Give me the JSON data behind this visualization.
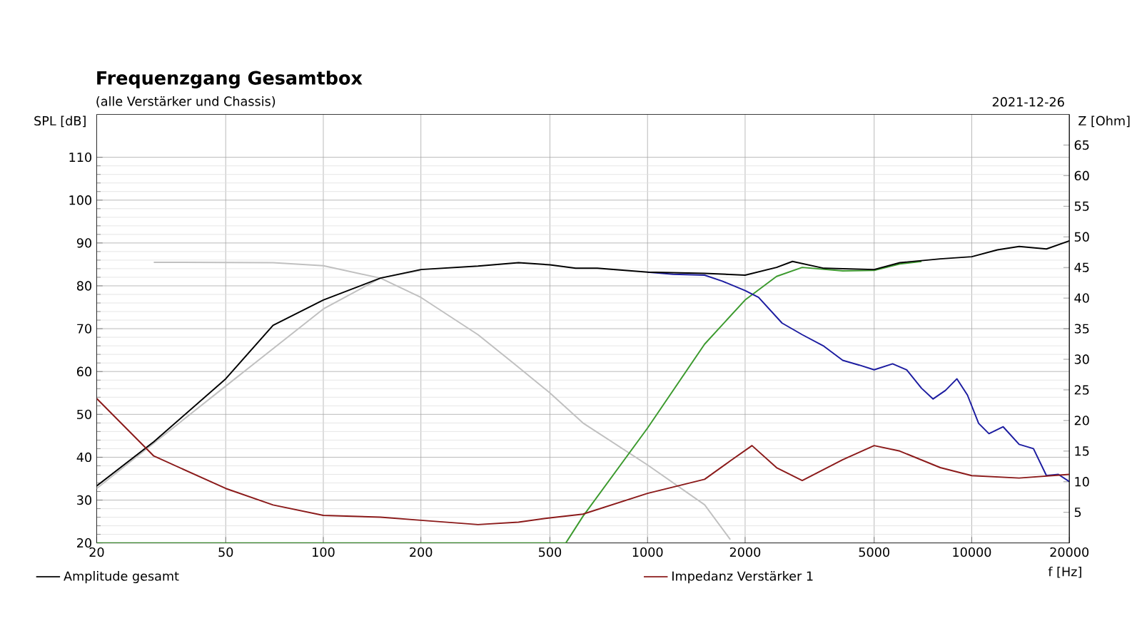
{
  "chart_data": {
    "type": "line",
    "title": "Frequenzgang Gesamtbox",
    "subtitle": "(alle Verstärker und Chassis)",
    "annotations": [
      "2021-12-26"
    ],
    "xlabel": "f [Hz]",
    "ylabel": "SPL [dB]",
    "y2label": "Z [Ohm]",
    "log": "x",
    "grid": true,
    "legend": "bottom",
    "xlim": [
      20,
      20000
    ],
    "xticks": [
      20,
      50,
      100,
      200,
      500,
      1000,
      2000,
      5000,
      10000,
      20000
    ],
    "ylim": [
      20,
      120
    ],
    "yticks": [
      20,
      30,
      40,
      50,
      60,
      70,
      80,
      90,
      100,
      110
    ],
    "y2lim": [
      0,
      70
    ],
    "y2ticks": [
      5,
      10,
      15,
      20,
      25,
      30,
      35,
      40,
      45,
      50,
      55,
      60,
      65
    ],
    "series": [
      {
        "color": "#c0c0c0",
        "x": [
          20,
          50,
          100,
          150,
          200
        ],
        "values": [
          32.7,
          56.6,
          74.6,
          81.8,
          83.6
        ]
      },
      {
        "color": "#c0c0c0",
        "x": [
          30,
          70,
          100,
          150,
          200,
          300,
          400,
          500,
          632,
          1000,
          1500,
          1800
        ],
        "values": [
          85.5,
          85.4,
          84.7,
          81.8,
          77.3,
          68.6,
          61,
          55,
          48,
          38.2,
          28.9,
          20.8
        ]
      },
      {
        "color": "#3c9a2e",
        "x": [
          20,
          560,
          632,
          1000,
          1500,
          2000,
          2500,
          3000,
          4000,
          5000,
          6000,
          7000
        ],
        "values": [
          20,
          20,
          26.2,
          46.8,
          66.4,
          76.7,
          82.2,
          84.3,
          83.5,
          83.6,
          85.1,
          85.7
        ]
      },
      {
        "color": "#1c1ca0",
        "x": [
          1000,
          1200,
          1500,
          1700,
          2000,
          2200,
          2600,
          3000,
          3500,
          4000,
          4500,
          5000,
          5700,
          6300,
          7000,
          7600,
          8300,
          9000,
          9700,
          10500,
          11300,
          12500,
          14000,
          15500,
          17000,
          18500,
          20000
        ],
        "values": [
          83.2,
          82.7,
          82.5,
          81.1,
          78.9,
          77.3,
          71.3,
          68.6,
          65.9,
          62.6,
          61.5,
          60.4,
          61.8,
          60.4,
          56.1,
          53.6,
          55.6,
          58.3,
          54.5,
          47.9,
          45.5,
          47.1,
          43,
          42,
          35.7,
          36,
          34.3
        ]
      },
      {
        "name": "Amplitude gesamt",
        "color": "#000000",
        "x": [
          20,
          30,
          50,
          70,
          100,
          150,
          200,
          300,
          400,
          500,
          600,
          700,
          1000,
          1500,
          2000,
          2500,
          2800,
          3500,
          5000,
          6000,
          8000,
          10000,
          12000,
          14000,
          17000,
          20000
        ],
        "values": [
          33.3,
          43.6,
          58.3,
          70.8,
          76.7,
          81.8,
          83.8,
          84.6,
          85.4,
          84.9,
          84.1,
          84.1,
          83.2,
          82.9,
          82.5,
          84.3,
          85.7,
          84.1,
          83.8,
          85.4,
          86.3,
          86.8,
          88.4,
          89.2,
          88.6,
          90.5
        ]
      },
      {
        "name": "Impedanz Verstärker 1",
        "color": "#8b1a1a",
        "axis": "y2",
        "x": [
          20,
          30,
          50,
          70,
          100,
          150,
          200,
          300,
          400,
          500,
          632,
          1000,
          1500,
          1800,
          2100,
          2500,
          3000,
          4000,
          5000,
          6000,
          8000,
          10000,
          14000,
          20000
        ],
        "values": [
          23.6,
          14.2,
          8.9,
          6.2,
          4.5,
          4.2,
          3.7,
          3.0,
          3.4,
          4.1,
          4.7,
          8.1,
          10.4,
          13.4,
          15.9,
          12.3,
          10.2,
          13.6,
          15.9,
          15.0,
          12.3,
          11.0,
          10.6,
          11.2
        ]
      }
    ]
  }
}
